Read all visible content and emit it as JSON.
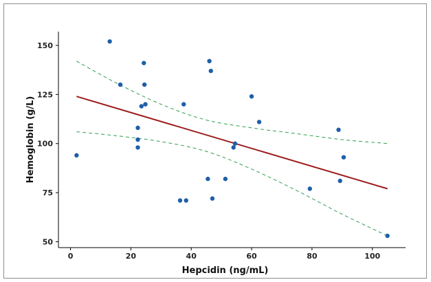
{
  "chart_data": {
    "type": "scatter",
    "title": "",
    "xlabel": "Hepcidin (ng/mL)",
    "ylabel": "Hemoglobin (g/L)",
    "xlim": [
      -4,
      111
    ],
    "ylim": [
      47,
      157
    ],
    "xticks": [
      0,
      20,
      40,
      60,
      80,
      100
    ],
    "yticks": [
      50,
      75,
      100,
      125,
      150
    ],
    "grid": false,
    "colors": {
      "points": "#1f5fa8",
      "fit_line": "#9b1c1c",
      "confidence_band": "#2e9e4f"
    },
    "points": [
      {
        "x": 2,
        "y": 94
      },
      {
        "x": 13,
        "y": 152
      },
      {
        "x": 16.5,
        "y": 130
      },
      {
        "x": 22.3,
        "y": 108
      },
      {
        "x": 22.3,
        "y": 102
      },
      {
        "x": 22.3,
        "y": 98
      },
      {
        "x": 23.5,
        "y": 119
      },
      {
        "x": 24.3,
        "y": 141
      },
      {
        "x": 24.5,
        "y": 130
      },
      {
        "x": 24.8,
        "y": 120
      },
      {
        "x": 36.3,
        "y": 71
      },
      {
        "x": 37.5,
        "y": 120
      },
      {
        "x": 38.3,
        "y": 71
      },
      {
        "x": 45.5,
        "y": 82
      },
      {
        "x": 46.0,
        "y": 142
      },
      {
        "x": 46.5,
        "y": 137
      },
      {
        "x": 47.0,
        "y": 72
      },
      {
        "x": 51.3,
        "y": 82
      },
      {
        "x": 54.0,
        "y": 98
      },
      {
        "x": 54.5,
        "y": 100
      },
      {
        "x": 60.0,
        "y": 124
      },
      {
        "x": 62.5,
        "y": 111
      },
      {
        "x": 79.3,
        "y": 77
      },
      {
        "x": 88.8,
        "y": 107
      },
      {
        "x": 89.3,
        "y": 81
      },
      {
        "x": 90.5,
        "y": 93
      },
      {
        "x": 105.0,
        "y": 53
      }
    ],
    "fit_line": {
      "x": [
        2,
        105
      ],
      "y": [
        124,
        77
      ]
    },
    "upper_band": {
      "x": [
        2,
        15,
        30,
        45,
        60,
        75,
        90,
        105
      ],
      "y": [
        142,
        131,
        120,
        112,
        108,
        105,
        102,
        100
      ]
    },
    "lower_band": {
      "x": [
        2,
        15,
        30,
        45,
        60,
        75,
        90,
        105
      ],
      "y": [
        106,
        104,
        101,
        96,
        87,
        76,
        64,
        53
      ]
    }
  }
}
